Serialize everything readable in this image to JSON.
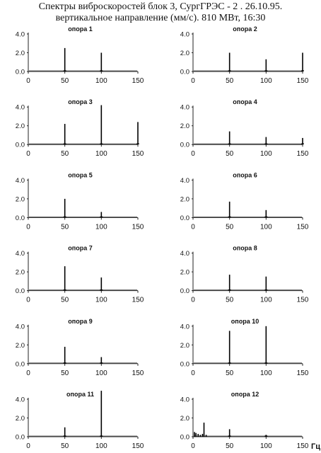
{
  "title_line1": "Спектры виброскоростей блок 3, СургГРЭС - 2 . 26.10.95.",
  "title_line2": "вертикальное  направление (мм/с). 810 МВт, 16:30",
  "x_unit": "Гц",
  "chart_data": [
    {
      "type": "line",
      "title": "опора 1",
      "xlim": [
        0,
        150
      ],
      "ylim": [
        0,
        4
      ],
      "x_ticks": [
        0,
        50,
        100,
        150
      ],
      "y_ticks": [
        "0.0",
        "2.0",
        "4.0"
      ],
      "spikes": [
        {
          "x": 50,
          "y": 2.5
        },
        {
          "x": 100,
          "y": 2.0
        }
      ]
    },
    {
      "type": "line",
      "title": "опора 2",
      "xlim": [
        0,
        150
      ],
      "ylim": [
        0,
        4
      ],
      "x_ticks": [
        0,
        50,
        100,
        150
      ],
      "y_ticks": [
        "0.0",
        "2.0",
        "4.0"
      ],
      "spikes": [
        {
          "x": 50,
          "y": 2.0
        },
        {
          "x": 100,
          "y": 1.3
        },
        {
          "x": 150,
          "y": 2.0
        }
      ]
    },
    {
      "type": "line",
      "title": "опора 3",
      "xlim": [
        0,
        150
      ],
      "ylim": [
        0,
        4
      ],
      "x_ticks": [
        0,
        50,
        100,
        150
      ],
      "y_ticks": [
        "0.0",
        "2.0",
        "4.0"
      ],
      "spikes": [
        {
          "x": 50,
          "y": 2.2
        },
        {
          "x": 100,
          "y": 4.2
        },
        {
          "x": 150,
          "y": 2.4
        }
      ]
    },
    {
      "type": "line",
      "title": "опора 4",
      "xlim": [
        0,
        150
      ],
      "ylim": [
        0,
        4
      ],
      "x_ticks": [
        0,
        50,
        100,
        150
      ],
      "y_ticks": [
        "0.0",
        "2.0",
        "4.0"
      ],
      "spikes": [
        {
          "x": 50,
          "y": 1.4
        },
        {
          "x": 100,
          "y": 0.8
        },
        {
          "x": 150,
          "y": 0.7
        }
      ]
    },
    {
      "type": "line",
      "title": "опора 5",
      "xlim": [
        0,
        150
      ],
      "ylim": [
        0,
        4
      ],
      "x_ticks": [
        0,
        50,
        100,
        150
      ],
      "y_ticks": [
        "0.0",
        "2.0",
        "4.0"
      ],
      "spikes": [
        {
          "x": 50,
          "y": 2.0
        },
        {
          "x": 100,
          "y": 0.6
        }
      ]
    },
    {
      "type": "line",
      "title": "опора 6",
      "xlim": [
        0,
        150
      ],
      "ylim": [
        0,
        4
      ],
      "x_ticks": [
        0,
        50,
        100,
        150
      ],
      "y_ticks": [
        "0.0",
        "2.0",
        "4.0"
      ],
      "spikes": [
        {
          "x": 50,
          "y": 1.7
        },
        {
          "x": 100,
          "y": 0.8
        }
      ]
    },
    {
      "type": "line",
      "title": "опора 7",
      "xlim": [
        0,
        150
      ],
      "ylim": [
        0,
        4
      ],
      "x_ticks": [
        0,
        50,
        100,
        150
      ],
      "y_ticks": [
        "0.0",
        "2.0",
        "4.0"
      ],
      "spikes": [
        {
          "x": 50,
          "y": 2.6
        },
        {
          "x": 100,
          "y": 1.4
        }
      ]
    },
    {
      "type": "line",
      "title": "опора 8",
      "xlim": [
        0,
        150
      ],
      "ylim": [
        0,
        4
      ],
      "x_ticks": [
        0,
        50,
        100,
        150
      ],
      "y_ticks": [
        "0.0",
        "2.0",
        "4.0"
      ],
      "spikes": [
        {
          "x": 50,
          "y": 1.7
        },
        {
          "x": 100,
          "y": 1.5
        }
      ]
    },
    {
      "type": "line",
      "title": "опора 9",
      "xlim": [
        0,
        150
      ],
      "ylim": [
        0,
        4
      ],
      "x_ticks": [
        0,
        50,
        100,
        150
      ],
      "y_ticks": [
        "0.0",
        "2.0",
        "4.0"
      ],
      "spikes": [
        {
          "x": 50,
          "y": 1.8
        },
        {
          "x": 100,
          "y": 0.7
        }
      ]
    },
    {
      "type": "line",
      "title": "опора 10",
      "xlim": [
        0,
        150
      ],
      "ylim": [
        0,
        4
      ],
      "x_ticks": [
        0,
        50,
        100,
        150
      ],
      "y_ticks": [
        "0.0",
        "2.0",
        "4.0"
      ],
      "spikes": [
        {
          "x": 50,
          "y": 3.5
        },
        {
          "x": 100,
          "y": 4.0
        }
      ]
    },
    {
      "type": "line",
      "title": "опора 11",
      "xlim": [
        0,
        150
      ],
      "ylim": [
        0,
        4
      ],
      "x_ticks": [
        0,
        50,
        100,
        150
      ],
      "y_ticks": [
        "0.0",
        "2.0",
        "4.0"
      ],
      "spikes": [
        {
          "x": 50,
          "y": 1.0
        },
        {
          "x": 100,
          "y": 4.9
        }
      ]
    },
    {
      "type": "line",
      "title": "опора 12",
      "xlim": [
        0,
        150
      ],
      "ylim": [
        0,
        4
      ],
      "x_ticks": [
        0,
        50,
        100,
        150
      ],
      "y_ticks": [
        "0.0",
        "2.0",
        "4.0"
      ],
      "spikes": [
        {
          "x": 2,
          "y": 0.5
        },
        {
          "x": 4,
          "y": 0.4
        },
        {
          "x": 7,
          "y": 0.3
        },
        {
          "x": 10,
          "y": 0.2
        },
        {
          "x": 13,
          "y": 0.3
        },
        {
          "x": 15,
          "y": 1.5
        },
        {
          "x": 18,
          "y": 0.2
        },
        {
          "x": 50,
          "y": 0.8
        },
        {
          "x": 100,
          "y": 0.2
        }
      ]
    }
  ]
}
